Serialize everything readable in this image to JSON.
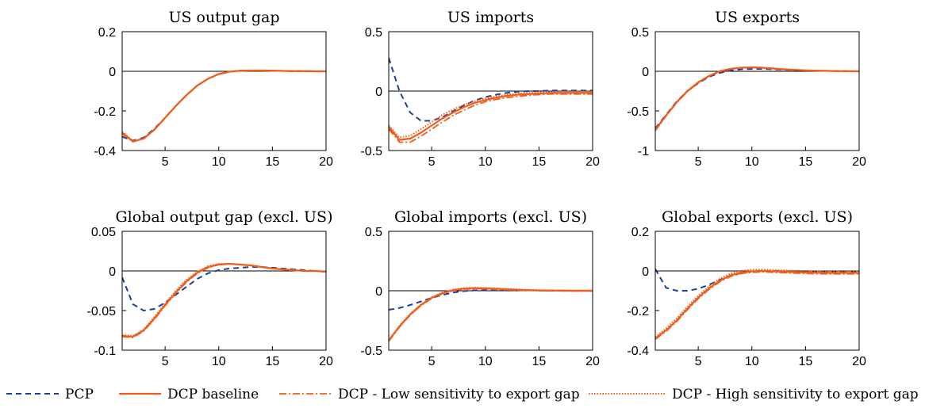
{
  "chart_data": [
    {
      "type": "line",
      "title": "US output gap",
      "xlim": [
        1,
        20
      ],
      "ylim": [
        -0.4,
        0.2
      ],
      "x_ticks": [
        5,
        10,
        15,
        20
      ],
      "x_tick_labels": [
        "5",
        "10",
        "15",
        "20"
      ],
      "y_ticks": [
        -0.4,
        -0.2,
        0,
        0.2
      ],
      "y_tick_labels": [
        "-0.4",
        "-0.2",
        "0",
        "0.2"
      ],
      "x": [
        1,
        2,
        3,
        4,
        5,
        6,
        7,
        8,
        9,
        10,
        11,
        12,
        13,
        14,
        15,
        16,
        17,
        18,
        19,
        20
      ],
      "series": [
        {
          "name": "PCP",
          "values": [
            -0.33,
            -0.35,
            -0.335,
            -0.29,
            -0.235,
            -0.175,
            -0.12,
            -0.072,
            -0.038,
            -0.014,
            -0.002,
            0.003,
            0.004,
            0.004,
            0.003,
            0.002,
            0.001,
            0.001,
            0.0,
            0.0
          ]
        },
        {
          "name": "DCP baseline",
          "values": [
            -0.31,
            -0.355,
            -0.34,
            -0.295,
            -0.235,
            -0.175,
            -0.12,
            -0.072,
            -0.038,
            -0.014,
            -0.002,
            0.003,
            0.004,
            0.004,
            0.003,
            0.002,
            0.001,
            0.001,
            0.0,
            0.0
          ]
        },
        {
          "name": "DCP - Low sensitivity to export gap",
          "values": [
            -0.315,
            -0.355,
            -0.34,
            -0.295,
            -0.235,
            -0.175,
            -0.12,
            -0.072,
            -0.038,
            -0.014,
            -0.002,
            0.003,
            0.004,
            0.004,
            0.003,
            0.002,
            0.001,
            0.001,
            0.0,
            0.0
          ]
        },
        {
          "name": "DCP - High sensitivity to export gap",
          "values": [
            -0.305,
            -0.352,
            -0.338,
            -0.293,
            -0.234,
            -0.174,
            -0.119,
            -0.071,
            -0.037,
            -0.013,
            -0.002,
            0.003,
            0.004,
            0.004,
            0.003,
            0.002,
            0.001,
            0.001,
            0.0,
            0.0
          ]
        }
      ]
    },
    {
      "type": "line",
      "title": "US imports",
      "xlim": [
        1,
        20
      ],
      "ylim": [
        -0.5,
        0.5
      ],
      "x_ticks": [
        5,
        10,
        15,
        20
      ],
      "x_tick_labels": [
        "5",
        "10",
        "15",
        "20"
      ],
      "y_ticks": [
        -0.5,
        0,
        0.5
      ],
      "y_tick_labels": [
        "-0.5",
        "0",
        "0.5"
      ],
      "x": [
        1,
        2,
        3,
        4,
        5,
        6,
        7,
        8,
        9,
        10,
        11,
        12,
        13,
        14,
        15,
        16,
        17,
        18,
        19,
        20
      ],
      "series": [
        {
          "name": "PCP",
          "values": [
            0.28,
            0.0,
            -0.18,
            -0.25,
            -0.25,
            -0.22,
            -0.17,
            -0.12,
            -0.08,
            -0.05,
            -0.03,
            -0.015,
            -0.005,
            0.0,
            0.0,
            0.005,
            0.005,
            0.005,
            0.005,
            0.005
          ]
        },
        {
          "name": "DCP baseline",
          "values": [
            -0.3,
            -0.41,
            -0.4,
            -0.35,
            -0.29,
            -0.23,
            -0.18,
            -0.135,
            -0.1,
            -0.075,
            -0.055,
            -0.04,
            -0.03,
            -0.025,
            -0.02,
            -0.015,
            -0.015,
            -0.015,
            -0.015,
            -0.015
          ]
        },
        {
          "name": "DCP - Low sensitivity to export gap",
          "values": [
            -0.32,
            -0.43,
            -0.43,
            -0.38,
            -0.32,
            -0.26,
            -0.205,
            -0.16,
            -0.12,
            -0.09,
            -0.07,
            -0.055,
            -0.045,
            -0.035,
            -0.03,
            -0.025,
            -0.025,
            -0.025,
            -0.025,
            -0.025
          ]
        },
        {
          "name": "DCP - High sensitivity to export gap",
          "values": [
            -0.29,
            -0.39,
            -0.375,
            -0.32,
            -0.26,
            -0.2,
            -0.155,
            -0.115,
            -0.085,
            -0.06,
            -0.045,
            -0.03,
            -0.02,
            -0.015,
            -0.01,
            -0.01,
            -0.005,
            -0.005,
            -0.005,
            -0.005
          ]
        }
      ]
    },
    {
      "type": "line",
      "title": "US exports",
      "xlim": [
        1,
        20
      ],
      "ylim": [
        -1,
        0.5
      ],
      "x_ticks": [
        5,
        10,
        15,
        20
      ],
      "x_tick_labels": [
        "5",
        "10",
        "15",
        "20"
      ],
      "y_ticks": [
        -1,
        -0.5,
        0,
        0.5
      ],
      "y_tick_labels": [
        "-1",
        "-0.5",
        "0",
        "0.5"
      ],
      "x": [
        1,
        2,
        3,
        4,
        5,
        6,
        7,
        8,
        9,
        10,
        11,
        12,
        13,
        14,
        15,
        16,
        17,
        18,
        19,
        20
      ],
      "series": [
        {
          "name": "PCP",
          "values": [
            -0.72,
            -0.55,
            -0.38,
            -0.25,
            -0.15,
            -0.07,
            -0.02,
            0.01,
            0.025,
            0.03,
            0.03,
            0.025,
            0.02,
            0.015,
            0.01,
            0.008,
            0.005,
            0.003,
            0.002,
            0.0
          ]
        },
        {
          "name": "DCP baseline",
          "values": [
            -0.74,
            -0.56,
            -0.39,
            -0.25,
            -0.14,
            -0.06,
            0.0,
            0.03,
            0.045,
            0.05,
            0.045,
            0.035,
            0.025,
            0.018,
            0.012,
            0.008,
            0.005,
            0.003,
            0.002,
            0.0
          ]
        },
        {
          "name": "DCP - Low sensitivity to export gap",
          "values": [
            -0.75,
            -0.565,
            -0.395,
            -0.255,
            -0.145,
            -0.063,
            -0.003,
            0.028,
            0.043,
            0.048,
            0.043,
            0.033,
            0.024,
            0.017,
            0.011,
            0.007,
            0.005,
            0.003,
            0.002,
            0.0
          ]
        },
        {
          "name": "DCP - High sensitivity to export gap",
          "values": [
            -0.73,
            -0.555,
            -0.385,
            -0.245,
            -0.137,
            -0.057,
            0.003,
            0.032,
            0.047,
            0.052,
            0.047,
            0.037,
            0.027,
            0.019,
            0.013,
            0.009,
            0.006,
            0.004,
            0.002,
            0.001
          ]
        }
      ]
    },
    {
      "type": "line",
      "title": "Global output gap (excl. US)",
      "xlim": [
        1,
        20
      ],
      "ylim": [
        -0.1,
        0.05
      ],
      "x_ticks": [
        5,
        10,
        15,
        20
      ],
      "x_tick_labels": [
        "5",
        "10",
        "15",
        "20"
      ],
      "y_ticks": [
        -0.1,
        -0.05,
        0,
        0.05
      ],
      "y_tick_labels": [
        "-0.1",
        "-0.05",
        "0",
        "0.05"
      ],
      "x": [
        1,
        2,
        3,
        4,
        5,
        6,
        7,
        8,
        9,
        10,
        11,
        12,
        13,
        14,
        15,
        16,
        17,
        18,
        19,
        20
      ],
      "series": [
        {
          "name": "PCP",
          "values": [
            -0.008,
            -0.042,
            -0.05,
            -0.048,
            -0.04,
            -0.03,
            -0.02,
            -0.01,
            -0.003,
            0.001,
            0.003,
            0.004,
            0.005,
            0.005,
            0.004,
            0.003,
            0.002,
            0.001,
            0.0,
            -0.001
          ]
        },
        {
          "name": "DCP baseline",
          "values": [
            -0.082,
            -0.083,
            -0.075,
            -0.06,
            -0.043,
            -0.027,
            -0.013,
            -0.002,
            0.005,
            0.008,
            0.009,
            0.008,
            0.007,
            0.005,
            0.003,
            0.002,
            0.001,
            0.0,
            0.0,
            -0.001
          ]
        },
        {
          "name": "DCP - Low sensitivity to export gap",
          "values": [
            -0.083,
            -0.084,
            -0.076,
            -0.061,
            -0.044,
            -0.028,
            -0.014,
            -0.003,
            0.004,
            0.008,
            0.009,
            0.008,
            0.007,
            0.005,
            0.003,
            0.002,
            0.001,
            0.0,
            0.0,
            -0.001
          ]
        },
        {
          "name": "DCP - High sensitivity to export gap",
          "values": [
            -0.081,
            -0.082,
            -0.074,
            -0.058,
            -0.041,
            -0.025,
            -0.011,
            -0.001,
            0.006,
            0.009,
            0.009,
            0.008,
            0.007,
            0.005,
            0.003,
            0.002,
            0.001,
            0.0,
            0.0,
            -0.001
          ]
        }
      ]
    },
    {
      "type": "line",
      "title": "Global imports (excl. US)",
      "xlim": [
        1,
        20
      ],
      "ylim": [
        -0.5,
        0.5
      ],
      "x_ticks": [
        5,
        10,
        15,
        20
      ],
      "x_tick_labels": [
        "5",
        "10",
        "15",
        "20"
      ],
      "y_ticks": [
        -0.5,
        0,
        0.5
      ],
      "y_tick_labels": [
        "-0.5",
        "0",
        "0.5"
      ],
      "x": [
        1,
        2,
        3,
        4,
        5,
        6,
        7,
        8,
        9,
        10,
        11,
        12,
        13,
        14,
        15,
        16,
        17,
        18,
        19,
        20
      ],
      "series": [
        {
          "name": "PCP",
          "values": [
            -0.16,
            -0.145,
            -0.12,
            -0.09,
            -0.06,
            -0.035,
            -0.015,
            -0.003,
            0.003,
            0.006,
            0.006,
            0.005,
            0.004,
            0.003,
            0.002,
            0.001,
            0.001,
            0.0,
            0.0,
            0.0
          ]
        },
        {
          "name": "DCP baseline",
          "values": [
            -0.42,
            -0.3,
            -0.2,
            -0.12,
            -0.06,
            -0.02,
            0.005,
            0.018,
            0.022,
            0.02,
            0.016,
            0.012,
            0.008,
            0.005,
            0.003,
            0.002,
            0.001,
            0.0,
            0.0,
            0.0
          ]
        },
        {
          "name": "DCP - Low sensitivity to export gap",
          "values": [
            -0.425,
            -0.305,
            -0.205,
            -0.125,
            -0.065,
            -0.025,
            0.0,
            0.013,
            0.017,
            0.016,
            0.012,
            0.008,
            0.005,
            0.003,
            0.001,
            0.0,
            -0.001,
            -0.002,
            -0.002,
            -0.002
          ]
        },
        {
          "name": "DCP - High sensitivity to export gap",
          "values": [
            -0.415,
            -0.295,
            -0.195,
            -0.115,
            -0.055,
            -0.015,
            0.01,
            0.022,
            0.026,
            0.024,
            0.02,
            0.016,
            0.012,
            0.008,
            0.005,
            0.004,
            0.003,
            0.002,
            0.002,
            0.002
          ]
        }
      ]
    },
    {
      "type": "line",
      "title": "Global exports (excl. US)",
      "xlim": [
        1,
        20
      ],
      "ylim": [
        -0.4,
        0.2
      ],
      "x_ticks": [
        5,
        10,
        15,
        20
      ],
      "x_tick_labels": [
        "5",
        "10",
        "15",
        "20"
      ],
      "y_ticks": [
        -0.4,
        -0.2,
        0,
        0.2
      ],
      "y_tick_labels": [
        "-0.4",
        "-0.2",
        "0",
        "0.2"
      ],
      "x": [
        1,
        2,
        3,
        4,
        5,
        6,
        7,
        8,
        9,
        10,
        11,
        12,
        13,
        14,
        15,
        16,
        17,
        18,
        19,
        20
      ],
      "series": [
        {
          "name": "PCP",
          "values": [
            0.01,
            -0.085,
            -0.1,
            -0.1,
            -0.09,
            -0.07,
            -0.045,
            -0.025,
            -0.01,
            -0.002,
            0.0,
            0.0,
            -0.002,
            -0.004,
            -0.005,
            -0.006,
            -0.006,
            -0.006,
            -0.006,
            -0.006
          ]
        },
        {
          "name": "DCP baseline",
          "values": [
            -0.34,
            -0.3,
            -0.25,
            -0.19,
            -0.135,
            -0.088,
            -0.05,
            -0.022,
            -0.008,
            -0.002,
            0.0,
            -0.002,
            -0.004,
            -0.006,
            -0.008,
            -0.009,
            -0.01,
            -0.01,
            -0.01,
            -0.01
          ]
        },
        {
          "name": "DCP - Low sensitivity to export gap",
          "values": [
            -0.345,
            -0.305,
            -0.255,
            -0.195,
            -0.14,
            -0.093,
            -0.055,
            -0.028,
            -0.013,
            -0.007,
            -0.005,
            -0.007,
            -0.009,
            -0.011,
            -0.013,
            -0.014,
            -0.015,
            -0.015,
            -0.015,
            -0.015
          ]
        },
        {
          "name": "DCP - High sensitivity to export gap",
          "values": [
            -0.335,
            -0.29,
            -0.24,
            -0.18,
            -0.125,
            -0.078,
            -0.04,
            -0.013,
            0.001,
            0.006,
            0.007,
            0.005,
            0.003,
            0.001,
            -0.001,
            -0.002,
            -0.003,
            -0.003,
            -0.003,
            -0.003
          ]
        }
      ]
    }
  ],
  "legend": {
    "placement": "bottom",
    "entries": [
      {
        "label": "PCP",
        "color": "#1f3f99",
        "style": "dashed"
      },
      {
        "label": "DCP baseline",
        "color": "#f25c19",
        "style": "solid"
      },
      {
        "label": "DCP - Low sensitivity to export gap",
        "color": "#f25c19",
        "style": "dash-dot"
      },
      {
        "label": "DCP - High sensitivity to export gap",
        "color": "#f25c19",
        "style": "dotted"
      }
    ]
  },
  "colors": {
    "pcp": "#1f3f99",
    "dcp": "#f25c19",
    "zero_line": "#000000",
    "axis": "#000000"
  }
}
